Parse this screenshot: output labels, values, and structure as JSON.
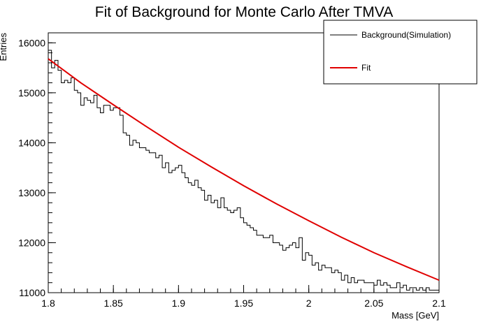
{
  "chart_data": {
    "type": "line",
    "title": "Fit of Background for Monte Carlo After TMVA",
    "xlabel": "Mass [GeV]",
    "ylabel": "Entries",
    "xlim": [
      1.8,
      2.1
    ],
    "ylim": [
      11000,
      16200
    ],
    "x_ticks": [
      "1.8",
      "1.85",
      "1.9",
      "1.95",
      "2",
      "2.05",
      "2.1"
    ],
    "y_ticks": [
      "11000",
      "12000",
      "13000",
      "14000",
      "15000",
      "16000"
    ],
    "grid": false,
    "legend_position": "top-right",
    "series": [
      {
        "name": "Background(Simulation)",
        "style": "histogram",
        "color": "#000000",
        "bin_width": 0.0025,
        "x_start": 1.8,
        "values": [
          15850,
          15500,
          15650,
          15450,
          15200,
          15250,
          15200,
          15300,
          15050,
          15000,
          14750,
          14900,
          14850,
          14800,
          14950,
          14700,
          14600,
          14750,
          14750,
          14650,
          14700,
          14700,
          14550,
          14200,
          14150,
          13950,
          14050,
          14000,
          13900,
          13900,
          13850,
          13800,
          13800,
          13700,
          13750,
          13500,
          13600,
          13400,
          13450,
          13500,
          13550,
          13400,
          13300,
          13200,
          13150,
          13250,
          13100,
          13050,
          12850,
          12950,
          12800,
          12850,
          12700,
          12900,
          12700,
          12650,
          12600,
          12650,
          12700,
          12500,
          12400,
          12350,
          12300,
          12250,
          12150,
          12150,
          12100,
          12100,
          12150,
          12000,
          12000,
          11950,
          11850,
          11900,
          11950,
          12000,
          11900,
          12100,
          11650,
          11800,
          11750,
          11550,
          11600,
          11450,
          11550,
          11500,
          11500,
          11400,
          11450,
          11400,
          11250,
          11350,
          11200,
          11300,
          11200,
          11250,
          11250,
          11200,
          11200,
          11200,
          11150,
          11250,
          11150,
          11200,
          11150,
          11100,
          11100,
          11200,
          11100,
          11150,
          11050,
          11100,
          11100,
          11050,
          11100,
          11050,
          11100,
          11050,
          11050,
          11050
        ]
      },
      {
        "name": "Fit",
        "style": "line",
        "color": "#e00000",
        "x": [
          1.8,
          1.825,
          1.85,
          1.875,
          1.9,
          1.925,
          1.95,
          1.975,
          2.0,
          2.025,
          2.05,
          2.075,
          2.1
        ],
        "values": [
          15680,
          15200,
          14760,
          14330,
          13910,
          13520,
          13140,
          12780,
          12440,
          12110,
          11800,
          11520,
          11250
        ]
      }
    ]
  }
}
